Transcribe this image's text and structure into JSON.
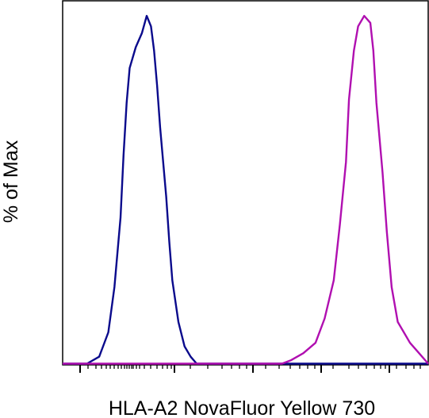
{
  "chart_data": {
    "type": "line",
    "title": "",
    "xlabel": "HLA-A2 NovaFluor Yellow 730",
    "ylabel": "% of Max",
    "x_scale": "log",
    "x_tick_labels": [],
    "y_tick_labels": [],
    "grid": false,
    "legend": "none",
    "series": [
      {
        "color": "#0a0a8c",
        "points": [
          [
            1.0,
            0
          ],
          [
            1.4,
            0
          ],
          [
            1.6,
            2
          ],
          [
            1.75,
            9
          ],
          [
            1.85,
            22
          ],
          [
            1.95,
            42
          ],
          [
            2.0,
            60
          ],
          [
            2.05,
            75
          ],
          [
            2.1,
            85
          ],
          [
            2.2,
            91
          ],
          [
            2.3,
            95
          ],
          [
            2.38,
            100
          ],
          [
            2.45,
            97
          ],
          [
            2.5,
            90
          ],
          [
            2.55,
            80
          ],
          [
            2.6,
            68
          ],
          [
            2.7,
            48
          ],
          [
            2.75,
            35
          ],
          [
            2.8,
            24
          ],
          [
            2.9,
            12
          ],
          [
            3.0,
            5
          ],
          [
            3.1,
            2
          ],
          [
            3.2,
            0
          ],
          [
            7.0,
            0
          ]
        ]
      },
      {
        "color": "#b00fb0",
        "points": [
          [
            1.0,
            0
          ],
          [
            4.6,
            0
          ],
          [
            4.75,
            1
          ],
          [
            4.95,
            3
          ],
          [
            5.15,
            6
          ],
          [
            5.3,
            13
          ],
          [
            5.45,
            24
          ],
          [
            5.55,
            40
          ],
          [
            5.65,
            58
          ],
          [
            5.7,
            76
          ],
          [
            5.78,
            90
          ],
          [
            5.85,
            97
          ],
          [
            5.95,
            100
          ],
          [
            6.05,
            98
          ],
          [
            6.1,
            90
          ],
          [
            6.15,
            75
          ],
          [
            6.25,
            55
          ],
          [
            6.32,
            38
          ],
          [
            6.4,
            22
          ],
          [
            6.5,
            12
          ],
          [
            6.6,
            9
          ],
          [
            6.7,
            6
          ],
          [
            6.85,
            3
          ],
          [
            7.0,
            0
          ],
          [
            7.0,
            0
          ]
        ]
      }
    ],
    "xlim": [
      1.0,
      7.0
    ],
    "ylim": [
      0,
      100
    ]
  }
}
